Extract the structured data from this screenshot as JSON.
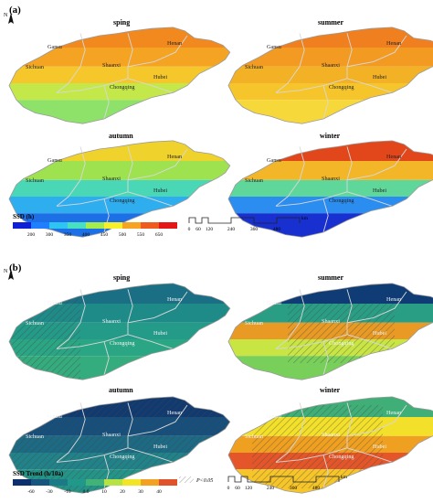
{
  "panels": [
    {
      "label": "(a)",
      "seasons": [
        "sping",
        "summer",
        "autumn",
        "winter"
      ],
      "legend_title": "SSD (h)",
      "legend_ticks": [
        "200",
        "300",
        "350",
        "400",
        "450",
        "500",
        "550",
        "650"
      ],
      "legend_colors": [
        "#0f1fd6",
        "#1f7fff",
        "#2fc5f2",
        "#48e0c0",
        "#a6ec4a",
        "#f6ef2a",
        "#f6a321",
        "#ef5b1e",
        "#e51515"
      ]
    },
    {
      "label": "(b)",
      "seasons": [
        "sping",
        "summer",
        "autumn",
        "winter"
      ],
      "legend_title": "SSD Trend (h/10a)",
      "legend_ticks": [
        "-60",
        "-30",
        "-10",
        "0.0",
        "10",
        "20",
        "30",
        "40"
      ],
      "legend_colors": [
        "#0d2f6e",
        "#15557e",
        "#1b7a86",
        "#20988a",
        "#43b276",
        "#b7e244",
        "#f2e426",
        "#f2a220",
        "#e2522a"
      ],
      "significance_label": "P<0.05"
    }
  ],
  "provinces": [
    "Gansu",
    "Henan",
    "Sichuan",
    "Shaanxi",
    "Hubei",
    "Chongqing"
  ],
  "north_label": "N",
  "scale_ticks": [
    "0",
    "60",
    "120",
    "240",
    "360",
    "480"
  ],
  "scale_unit": "km",
  "map_colors": {
    "a_sping": [
      "#f1891f",
      "#f5a323",
      "#f5c72b",
      "#c4e84a",
      "#8ee26a"
    ],
    "a_summer": [
      "#ef7f1f",
      "#f39a22",
      "#f3b126",
      "#f6c52c",
      "#f7d83a"
    ],
    "a_autumn": [
      "#f0d22c",
      "#9fe24f",
      "#4ad7b5",
      "#2eaeef",
      "#1d6fe6"
    ],
    "a_winter": [
      "#e2471b",
      "#f2b628",
      "#5fd79a",
      "#2b8df0",
      "#1830cf"
    ],
    "b_sping": [
      "#1b6f85",
      "#1f8b89",
      "#249a88",
      "#2aa684",
      "#34ac7d"
    ],
    "b_summer": [
      "#0f3c74",
      "#2a9e84",
      "#e89a24",
      "#c8e544",
      "#78cf5a"
    ],
    "b_autumn": [
      "#113a70",
      "#174f7c",
      "#1c6a84",
      "#218389",
      "#259488"
    ],
    "b_winter": [
      "#3fae77",
      "#f3e02a",
      "#f0a020",
      "#e4562a",
      "#f6c52a"
    ]
  }
}
